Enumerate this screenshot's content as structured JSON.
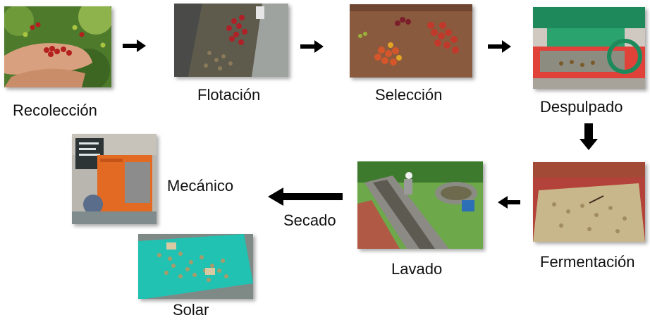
{
  "steps": {
    "harvest": {
      "label": "Recolección",
      "image": "hands-picking-coffee-cherries-photo"
    },
    "flotation": {
      "label": "Flotación",
      "image": "coffee-cherries-in-flotation-channel-photo"
    },
    "selection": {
      "label": "Selección",
      "image": "sorted-coffee-cherry-piles-photo"
    },
    "pulping": {
      "label": "Despulpado",
      "image": "coffee-pulping-machine-photo"
    },
    "fermentation": {
      "label": "Fermentación",
      "image": "fermentation-tank-photo"
    },
    "washing": {
      "label": "Lavado",
      "image": "worker-washing-coffee-in-channel-photo"
    },
    "drying": {
      "label": "Secado"
    },
    "mechanical": {
      "label": "Mecánico",
      "image": "mechanical-coffee-dryer-photo"
    },
    "solar": {
      "label": "Solar",
      "image": "coffee-drying-on-tarp-photo"
    }
  },
  "arrows": [
    {
      "from": "harvest",
      "to": "flotation",
      "direction": "right"
    },
    {
      "from": "flotation",
      "to": "selection",
      "direction": "right"
    },
    {
      "from": "selection",
      "to": "pulping",
      "direction": "right"
    },
    {
      "from": "pulping",
      "to": "fermentation",
      "direction": "down"
    },
    {
      "from": "fermentation",
      "to": "washing",
      "direction": "left"
    },
    {
      "from": "washing",
      "to": "drying",
      "direction": "left"
    }
  ],
  "colors": {
    "arrow": "#000000",
    "text": "#111111"
  }
}
